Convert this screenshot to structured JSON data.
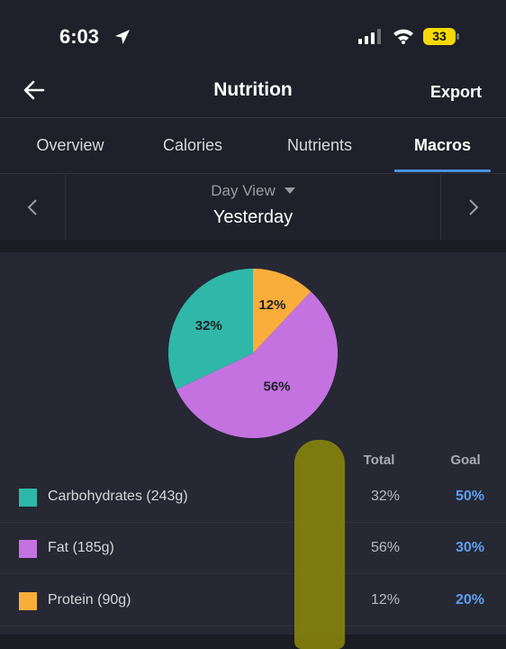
{
  "status": {
    "time": "6:03",
    "battery": "33"
  },
  "header": {
    "title": "Nutrition",
    "export_label": "Export"
  },
  "tabs": [
    {
      "label": "Overview"
    },
    {
      "label": "Calories"
    },
    {
      "label": "Nutrients"
    },
    {
      "label": "Macros",
      "active": true
    }
  ],
  "day_nav": {
    "mode": "Day View",
    "date": "Yesterday"
  },
  "chart_data": {
    "type": "pie",
    "slices": [
      {
        "label": "12%",
        "value": 12,
        "color": "#f9ae3b",
        "macro": "Protein"
      },
      {
        "label": "56%",
        "value": 56,
        "color": "#c472e0",
        "macro": "Fat"
      },
      {
        "label": "32%",
        "value": 32,
        "color": "#2fb8a7",
        "macro": "Carbohydrates"
      }
    ]
  },
  "table": {
    "headers": {
      "total": "Total",
      "goal": "Goal"
    },
    "rows": [
      {
        "label": "Carbohydrates (243g)",
        "total": "32%",
        "goal": "50%",
        "color": "#2fb8a7"
      },
      {
        "label": "Fat (185g)",
        "total": "56%",
        "goal": "30%",
        "color": "#c472e0"
      },
      {
        "label": "Protein (90g)",
        "total": "12%",
        "goal": "20%",
        "color": "#f9ae3b"
      }
    ]
  }
}
